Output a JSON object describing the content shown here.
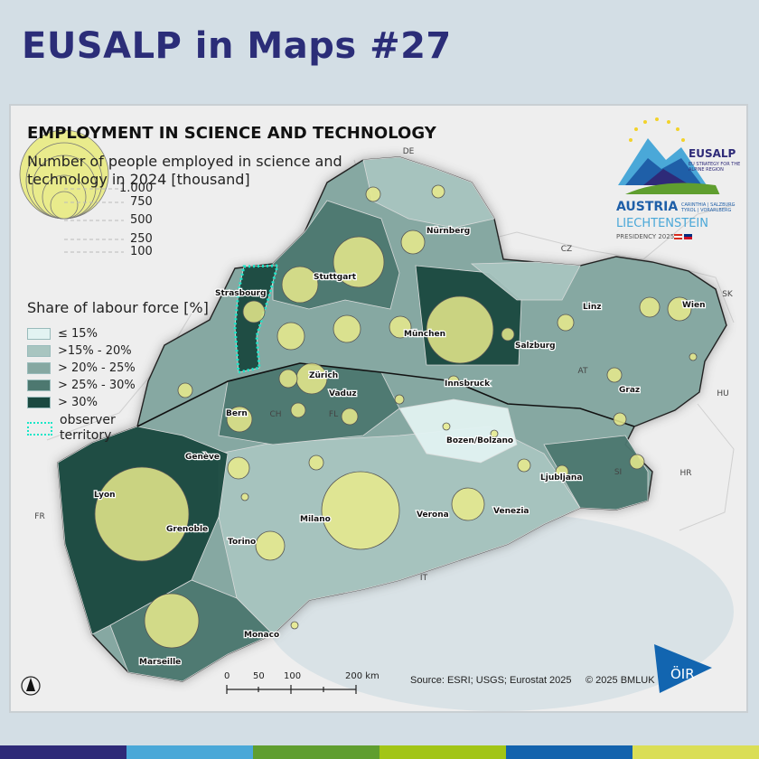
{
  "header": {
    "title": "EUSALP in Maps #27"
  },
  "map": {
    "title": "EMPLOYMENT IN SCIENCE AND TECHNOLOGY",
    "subtitle": "Number of people employed in science and technology in 2024 [thousand]",
    "size_legend": [
      "1.000",
      "750",
      "500",
      "250",
      "100"
    ],
    "share_legend_title": "Share of labour force [%]",
    "share_classes": [
      {
        "label": "≤ 15%",
        "color": "#e2f3f2"
      },
      {
        "label": ">15% - 20%",
        "color": "#a8c5c0"
      },
      {
        "label": "> 20% - 25%",
        "color": "#86a8a2"
      },
      {
        "label": "> 25% - 30%",
        "color": "#4d7870"
      },
      {
        "label": "> 30%",
        "color": "#1a4940"
      }
    ],
    "observer_label": "observer territory",
    "observer_color": "#19e6c8",
    "bubble_color": "#e9eb8c",
    "countries": [
      "DE",
      "CZ",
      "SK",
      "AT",
      "HU",
      "HR",
      "SI",
      "FR",
      "IT",
      "CH",
      "FL"
    ],
    "cities": [
      "Stuttgart",
      "Nürnberg",
      "Strasbourg",
      "München",
      "Linz",
      "Wien",
      "Salzburg",
      "Innsbruck",
      "Graz",
      "Zürich",
      "Vaduz",
      "Bern",
      "Genève",
      "Bozen/Bolzano",
      "Ljubljana",
      "Lyon",
      "Grenoble",
      "Milano",
      "Verona",
      "Venezia",
      "Torino",
      "Monaco",
      "Marseille"
    ],
    "scale_bar": {
      "ticks": [
        "0",
        "50",
        "100",
        "200 km"
      ]
    },
    "source": "Source: ESRI; USGS; Eurostat 2025",
    "copyright": "© 2025 BMLUK",
    "north_arrow": "north-arrow-icon"
  },
  "logo": {
    "brand": "EUSALP",
    "tagline": "EU STRATEGY FOR THE ALPINE REGION",
    "line1": "AUSTRIA",
    "regions": "CARINTHIA | SALZBURG TYROL | VORARLBERG",
    "line2": "LIECHTENSTEIN",
    "presidency": "PRESIDENCY 2025",
    "oir": "ÖIR"
  },
  "stripe_colors": [
    "#2e2a78",
    "#4aa8d8",
    "#5f9e2f",
    "#a2c516",
    "#1363ad",
    "#dade56"
  ]
}
